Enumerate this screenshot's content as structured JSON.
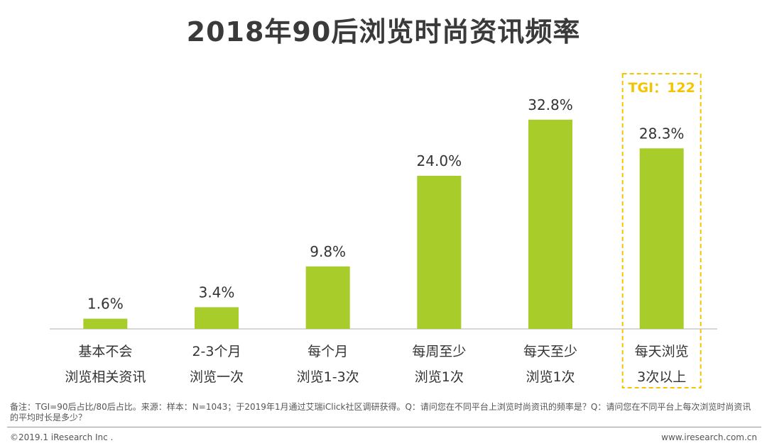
{
  "title": "2018年90后浏览时尚资讯频率",
  "chart_data": {
    "type": "bar",
    "title": "2018年90后浏览时尚资讯频率",
    "categories": [
      [
        "基本不会",
        "浏览相关资讯"
      ],
      [
        "2-3个月",
        "浏览一次"
      ],
      [
        "每个月",
        "浏览1-3次"
      ],
      [
        "每周至少",
        "浏览1次"
      ],
      [
        "每天至少",
        "浏览1次"
      ],
      [
        "每天浏览",
        "3次以上"
      ]
    ],
    "values": [
      1.6,
      3.4,
      9.8,
      24.0,
      32.8,
      28.3
    ],
    "value_labels": [
      "1.6%",
      "3.4%",
      "9.8%",
      "24.0%",
      "32.8%",
      "28.3%"
    ],
    "unit": "%",
    "ylim": [
      0,
      36
    ],
    "bar_color": "#a8cc2a",
    "highlight": {
      "index": 5,
      "label": "TGI：122",
      "color": "#f5c400"
    },
    "xlabel": "",
    "ylabel": ""
  },
  "note": "备注：TGI=90后占比/80后占比。来源：样本：N=1043；于2019年1月通过艾瑞iClick社区调研获得。Q：请问您在不同平台上浏览时尚资讯的频率是？Q：请问您在不同平台上每次浏览时尚资讯的平均时长是多少？",
  "footer": {
    "copyright": "©2019.1 iResearch Inc .",
    "website": "www.iresearch.com.cn"
  }
}
